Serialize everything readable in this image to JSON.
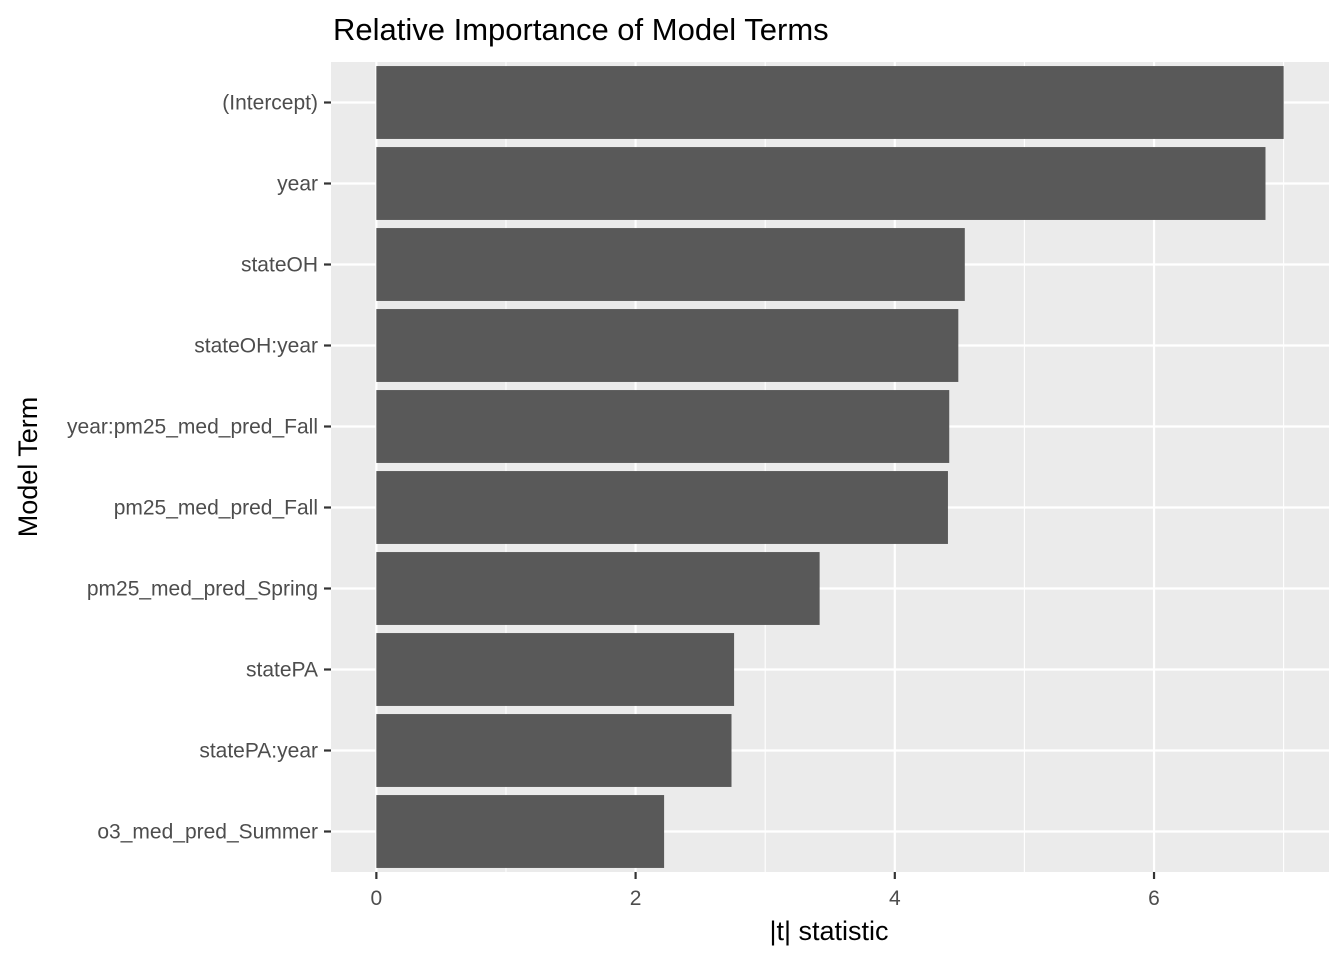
{
  "chart_data": {
    "type": "bar",
    "orientation": "horizontal",
    "title": "Relative Importance of Model Terms",
    "xlabel": "|t| statistic",
    "ylabel": "Model Term",
    "categories": [
      "(Intercept)",
      "year",
      "stateOH",
      "stateOH:year",
      "year:pm25_med_pred_Fall",
      "pm25_med_pred_Fall",
      "pm25_med_pred_Spring",
      "statePA",
      "statePA:year",
      "o3_med_pred_Summer"
    ],
    "values": [
      7.0,
      6.86,
      4.54,
      4.49,
      4.42,
      4.41,
      3.42,
      2.76,
      2.74,
      2.22
    ],
    "xlim": [
      -0.35,
      7.35
    ],
    "xticks": [
      0,
      2,
      4,
      6
    ],
    "grid": true,
    "bar_color": "#595959",
    "panel_background": "#ebebeb",
    "grid_color": "#ffffff"
  }
}
